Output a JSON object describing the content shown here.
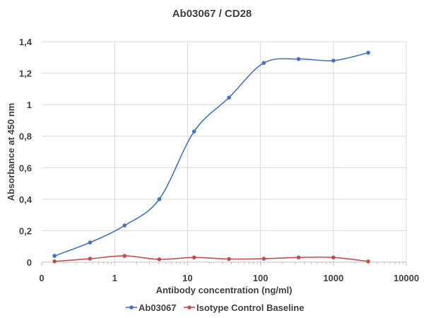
{
  "chart_data": {
    "type": "line",
    "title": "Ab03067 / CD28",
    "xlabel": "Antibody concentration (ng/ml)",
    "ylabel": "Absorbance at 450 nm",
    "x_scale": "log",
    "xlim": [
      0.1,
      10000
    ],
    "ylim": [
      0,
      1.4
    ],
    "x_ticks": [
      0.1,
      1,
      10,
      100,
      1000,
      10000
    ],
    "x_tick_labels": [
      "0",
      "1",
      "10",
      "100",
      "1000",
      "10000"
    ],
    "y_ticks": [
      0,
      0.2,
      0.4,
      0.6,
      0.8,
      1,
      1.2,
      1.4
    ],
    "y_tick_labels": [
      "0",
      "0,2",
      "0,4",
      "0,6",
      "0,8",
      "1",
      "1,2",
      "1,4"
    ],
    "grid": true,
    "legend_position": "bottom",
    "x": [
      0.15,
      0.46,
      1.37,
      4.1,
      12.3,
      37,
      111,
      333,
      1000,
      3000
    ],
    "series": [
      {
        "name": "Ab03067",
        "color": "#4472c4",
        "values": [
          0.04,
          0.125,
          0.233,
          0.4,
          0.83,
          1.045,
          1.265,
          1.29,
          1.28,
          1.33
        ]
      },
      {
        "name": "Isotype Control Baseline",
        "color": "#c0504d",
        "values": [
          0.005,
          0.022,
          0.04,
          0.018,
          0.03,
          0.02,
          0.022,
          0.03,
          0.03,
          0.005
        ]
      }
    ]
  }
}
